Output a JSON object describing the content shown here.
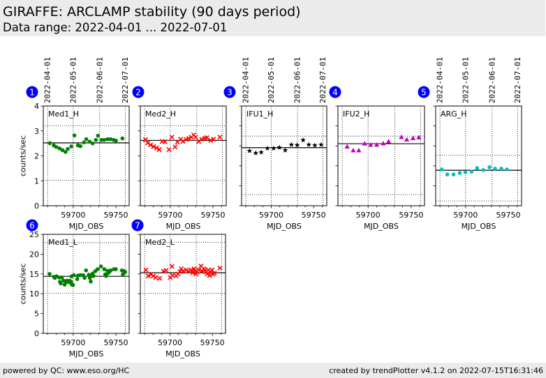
{
  "header": {
    "title": "GIRAFFE: ARCLAMP stability (90 days period)",
    "subtitle": "Data range: 2022-04-01 ... 2022-07-01"
  },
  "footer": {
    "left": "powered by QC: www.eso.org/HC",
    "right": "created by trendPlotter v4.1.2 on 2022-07-15T16:31:46"
  },
  "colors": {
    "badge": "#0000ff",
    "badge_text": "#ffffff",
    "header_bg": "#ebebeb"
  },
  "chart_data": [
    {
      "index": "1",
      "type": "scatter",
      "title": "Med1_H",
      "xlabel": "MJD_OBS",
      "ylabel": "counts/sec",
      "xlim": [
        59665,
        59765.5
      ],
      "ylim": [
        0,
        4
      ],
      "xticks_minor": [
        59670,
        59680,
        59690,
        59700,
        59710,
        59720,
        59730,
        59740,
        59750,
        59760
      ],
      "xtick_labels": [
        "59700",
        "59750"
      ],
      "yticks": [
        0,
        1,
        2,
        3,
        4
      ],
      "ytick_labels": [
        "0",
        "1",
        "2",
        "3",
        "4"
      ],
      "show_ytick_labels": true,
      "show_ylabel": true,
      "show_date_labels": true,
      "date_ticks": [
        {
          "mjd": 59670,
          "label": "2022-04-01"
        },
        {
          "mjd": 59700,
          "label": "2022-05-01"
        },
        {
          "mjd": 59731,
          "label": "2022-06-01"
        },
        {
          "mjd": 59761,
          "label": "2022-07-01"
        }
      ],
      "mean": 2.52,
      "upper_limit": 3.21,
      "lower_limit": 1.02,
      "marker": "circle",
      "color": "#008000",
      "x": [
        59672.7,
        59677.3,
        59680.0,
        59683.9,
        59687.4,
        59691.0,
        59693.7,
        59697.8,
        59701.4,
        59705.5,
        59708.5,
        59712.5,
        59715.3,
        59719.1,
        59722.7,
        59726.5,
        59729.0,
        59733.0,
        59736.3,
        59740.2,
        59743.7,
        59747.3,
        59750.0,
        59757.6
      ],
      "y": [
        2.51,
        2.42,
        2.36,
        2.3,
        2.23,
        2.16,
        2.28,
        2.38,
        2.82,
        2.42,
        2.39,
        2.54,
        2.67,
        2.57,
        2.5,
        2.64,
        2.81,
        2.64,
        2.64,
        2.67,
        2.67,
        2.64,
        2.61,
        2.7
      ]
    },
    {
      "index": "2",
      "type": "scatter",
      "title": "Med2_H",
      "xlabel": "MJD_OBS",
      "ylabel": "",
      "xlim": [
        59665,
        59765.5
      ],
      "ylim": [
        0,
        4
      ],
      "xticks_minor": [
        59670,
        59680,
        59690,
        59700,
        59710,
        59720,
        59730,
        59740,
        59750,
        59760
      ],
      "xtick_labels": [
        "59700",
        "59750"
      ],
      "yticks": [
        0,
        1,
        2,
        3,
        4
      ],
      "ytick_labels": [],
      "show_ytick_labels": false,
      "show_ylabel": false,
      "show_date_labels": false,
      "date_ticks": [
        {
          "mjd": 59670,
          "label": "2022-04-01"
        },
        {
          "mjd": 59700,
          "label": "2022-05-01"
        },
        {
          "mjd": 59731,
          "label": "2022-06-01"
        },
        {
          "mjd": 59761,
          "label": "2022-07-01"
        }
      ],
      "mean": 2.62,
      "upper_limit": 3.21,
      "lower_limit": 1.01,
      "marker": "x",
      "color": "#ff0000",
      "x": [
        59671.0,
        59673.7,
        59677.0,
        59680.5,
        59684.0,
        59687.2,
        59690.5,
        59694.0,
        59698.6,
        59701.9,
        59705.7,
        59708.4,
        59712.2,
        59714.9,
        59718.7,
        59721.7,
        59724.6,
        59727.4,
        59729.8,
        59733.3,
        59736.8,
        59740.4,
        59742.8,
        59747.4,
        59750.7,
        59758.0
      ],
      "y": [
        2.65,
        2.52,
        2.44,
        2.37,
        2.32,
        2.25,
        2.58,
        2.56,
        2.25,
        2.75,
        2.36,
        2.55,
        2.67,
        2.58,
        2.66,
        2.7,
        2.75,
        2.84,
        2.75,
        2.58,
        2.67,
        2.71,
        2.73,
        2.62,
        2.67,
        2.75
      ]
    },
    {
      "index": "3",
      "type": "scatter",
      "title": "IFU1_H",
      "xlabel": "MJD_OBS",
      "ylabel": "",
      "xlim": [
        59665,
        59765.5
      ],
      "ylim": [
        0,
        5
      ],
      "xticks_minor": [
        59670,
        59680,
        59690,
        59700,
        59710,
        59720,
        59730,
        59740,
        59750,
        59760
      ],
      "xtick_labels": [
        "59700",
        "59750"
      ],
      "yticks": [
        0,
        1,
        2,
        3,
        4,
        5
      ],
      "ytick_labels": [],
      "show_ytick_labels": false,
      "show_ylabel": false,
      "show_date_labels": true,
      "date_ticks": [
        {
          "mjd": 59670,
          "label": "2022-04-01"
        },
        {
          "mjd": 59700,
          "label": "2022-05-01"
        },
        {
          "mjd": 59731,
          "label": "2022-06-01"
        },
        {
          "mjd": 59761,
          "label": "2022-07-01"
        }
      ],
      "mean": 2.91,
      "upper_limit": 3.49,
      "lower_limit": 0.56,
      "marker": "star",
      "color": "#000000",
      "x": [
        59674.4,
        59681.7,
        59688.2,
        59695.5,
        59702.8,
        59709.5,
        59716.5,
        59723.8,
        59730.6,
        59737.6,
        59744.3,
        59751.4,
        59758.9
      ],
      "y": [
        2.75,
        2.64,
        2.68,
        2.88,
        2.88,
        2.92,
        2.78,
        3.06,
        3.04,
        3.29,
        3.06,
        3.03,
        3.06
      ]
    },
    {
      "index": "4",
      "type": "scatter",
      "title": "IFU2_H",
      "xlabel": "MJD_OBS",
      "ylabel": "",
      "xlim": [
        59665,
        59765.5
      ],
      "ylim": [
        0,
        5
      ],
      "xticks_minor": [
        59670,
        59680,
        59690,
        59700,
        59710,
        59720,
        59730,
        59740,
        59750,
        59760
      ],
      "xtick_labels": [
        "59700",
        "59750"
      ],
      "yticks": [
        0,
        1,
        2,
        3,
        4,
        5
      ],
      "ytick_labels": [],
      "show_ytick_labels": false,
      "show_ylabel": false,
      "show_date_labels": false,
      "date_ticks": [
        {
          "mjd": 59670,
          "label": "2022-04-01"
        },
        {
          "mjd": 59700,
          "label": "2022-05-01"
        },
        {
          "mjd": 59731,
          "label": "2022-06-01"
        },
        {
          "mjd": 59761,
          "label": "2022-07-01"
        }
      ],
      "mean": 3.11,
      "upper_limit": 3.49,
      "lower_limit": 0.56,
      "marker": "triangle",
      "color": "#bf00bf",
      "x": [
        59675.7,
        59682.7,
        59689.2,
        59696.0,
        59703.0,
        59710.0,
        59717.6,
        59723.8,
        59738.7,
        59744.9,
        59752.2,
        59758.9
      ],
      "y": [
        2.96,
        2.77,
        2.77,
        3.11,
        3.05,
        3.05,
        3.12,
        3.22,
        3.44,
        3.31,
        3.38,
        3.42
      ]
    },
    {
      "index": "5",
      "type": "scatter",
      "title": "ARG_H",
      "xlabel": "MJD_OBS",
      "ylabel": "",
      "xlim": [
        59665,
        59765.5
      ],
      "ylim": [
        0,
        5
      ],
      "xticks_minor": [
        59670,
        59680,
        59690,
        59700,
        59710,
        59720,
        59730,
        59740,
        59750,
        59760
      ],
      "xtick_labels": [
        "59700",
        "59750"
      ],
      "yticks": [
        0,
        1,
        2,
        3,
        4,
        5
      ],
      "ytick_labels": [],
      "show_ytick_labels": false,
      "show_ylabel": false,
      "show_date_labels": true,
      "date_ticks": [
        {
          "mjd": 59670,
          "label": "2022-04-01"
        },
        {
          "mjd": 59700,
          "label": "2022-05-01"
        },
        {
          "mjd": 59731,
          "label": "2022-06-01"
        },
        {
          "mjd": 59761,
          "label": "2022-07-01"
        }
      ],
      "mean": 1.78,
      "upper_limit": 2.54,
      "lower_limit": 0.24,
      "marker": "circle",
      "color": "#00bfbf",
      "x": [
        59672.1,
        59678.6,
        59685.9,
        59693.2,
        59699.7,
        59707.0,
        59713.5,
        59720.7,
        59728.0,
        59734.5,
        59741.8,
        59748.3
      ],
      "y": [
        1.82,
        1.57,
        1.57,
        1.64,
        1.68,
        1.71,
        1.89,
        1.79,
        1.93,
        1.86,
        1.86,
        1.82
      ]
    },
    {
      "index": "6",
      "type": "scatter",
      "title": "Med1_L",
      "xlabel": "MJD_OBS",
      "ylabel": "counts/sec",
      "xlim": [
        59665,
        59765.5
      ],
      "ylim": [
        0,
        25
      ],
      "xticks_minor": [
        59670,
        59680,
        59690,
        59700,
        59710,
        59720,
        59730,
        59740,
        59750,
        59760
      ],
      "xtick_labels": [
        "59700",
        "59750"
      ],
      "yticks": [
        0,
        5,
        10,
        15,
        20,
        25
      ],
      "ytick_labels": [
        "0",
        "5",
        "10",
        "15",
        "20",
        "25"
      ],
      "show_ytick_labels": true,
      "show_ylabel": true,
      "show_date_labels": false,
      "date_ticks": [
        {
          "mjd": 59670,
          "label": "2022-04-01"
        },
        {
          "mjd": 59700,
          "label": "2022-05-01"
        },
        {
          "mjd": 59731,
          "label": "2022-06-01"
        },
        {
          "mjd": 59761,
          "label": "2022-07-01"
        }
      ],
      "mean": 14.4,
      "upper_limit": 22.9,
      "lower_limit": 10.1,
      "marker": "circle",
      "color": "#008000",
      "x": [
        59672.4,
        59677.3,
        59678.5,
        59680.6,
        59683.9,
        59686.7,
        59684.5,
        59685.5,
        59688.8,
        59690.0,
        59691.6,
        59692.6,
        59693.7,
        59694.8,
        59695.9,
        59697.5,
        59698.4,
        59699.8,
        59698.1,
        59700.8,
        59704.7,
        59705.7,
        59708.4,
        59711.7,
        59713.3,
        59715.0,
        59718.2,
        59719.4,
        59720.5,
        59721.0,
        59722.7,
        59723.7,
        59725.9,
        59728.6,
        59732.5,
        59736.3,
        59737.4,
        59738.5,
        59740.1,
        59740.7,
        59742.3,
        59743.9,
        59747.7,
        59749.9,
        59757.0,
        59758.1,
        59759.7,
        59760.8
      ],
      "y": [
        15.0,
        14.3,
        14.0,
        14.4,
        14.1,
        14.1,
        13.0,
        12.6,
        13.3,
        12.3,
        13.0,
        13.3,
        13.1,
        12.9,
        13.3,
        13.0,
        12.3,
        12.2,
        14.4,
        14.7,
        13.7,
        14.6,
        14.7,
        14.7,
        14.0,
        15.9,
        14.8,
        14.0,
        13.1,
        14.5,
        15.1,
        14.5,
        15.7,
        16.2,
        16.9,
        16.2,
        14.9,
        14.5,
        15.8,
        15.2,
        15.5,
        15.9,
        16.2,
        16.2,
        15.9,
        14.9,
        15.7,
        15.5
      ]
    },
    {
      "index": "7",
      "type": "scatter",
      "title": "Med2_L",
      "xlabel": "MJD_OBS",
      "ylabel": "",
      "xlim": [
        59665,
        59765.5
      ],
      "ylim": [
        0,
        25
      ],
      "xticks_minor": [
        59670,
        59680,
        59690,
        59700,
        59710,
        59720,
        59730,
        59740,
        59750,
        59760
      ],
      "xtick_labels": [
        "59700",
        "59750"
      ],
      "yticks": [
        0,
        5,
        10,
        15,
        20,
        25
      ],
      "ytick_labels": [],
      "show_ytick_labels": false,
      "show_ylabel": false,
      "show_date_labels": false,
      "date_ticks": [
        {
          "mjd": 59670,
          "label": "2022-04-01"
        },
        {
          "mjd": 59700,
          "label": "2022-05-01"
        },
        {
          "mjd": 59731,
          "label": "2022-06-01"
        },
        {
          "mjd": 59761,
          "label": "2022-07-01"
        }
      ],
      "mean": 15.3,
      "upper_limit": 22.95,
      "lower_limit": 10.07,
      "marker": "x",
      "color": "#ff0000",
      "x": [
        59671.6,
        59674.3,
        59677.6,
        59680.3,
        59682.9,
        59687.8,
        59692.2,
        59695.5,
        59700.3,
        59702.4,
        59703.0,
        59707.3,
        59709.5,
        59711.7,
        59713.3,
        59715.4,
        59719.3,
        59721.4,
        59725.2,
        59726.8,
        59728.4,
        59729.6,
        59730.6,
        59731.7,
        59733.9,
        59736.6,
        59737.7,
        59739.8,
        59741.4,
        59742.6,
        59743.9,
        59745.2,
        59746.6,
        59747.9,
        59749.6,
        59750.7,
        59752.3,
        59758.8
      ],
      "y": [
        16.0,
        14.5,
        14.9,
        14.5,
        14.1,
        13.9,
        15.7,
        15.9,
        14.1,
        16.9,
        14.6,
        14.5,
        15.0,
        15.6,
        16.3,
        15.7,
        16.0,
        15.7,
        16.0,
        15.3,
        16.3,
        15.7,
        15.0,
        15.5,
        16.0,
        17.0,
        15.7,
        16.3,
        16.0,
        15.5,
        15.0,
        16.0,
        14.6,
        15.5,
        16.0,
        14.9,
        15.2,
        16.5
      ]
    }
  ]
}
